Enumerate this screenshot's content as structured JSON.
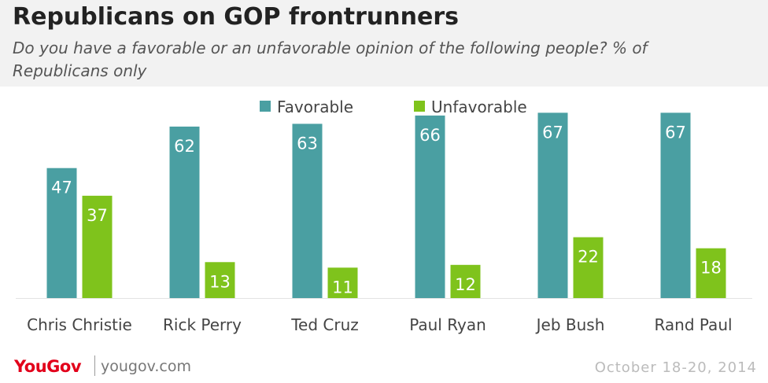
{
  "header": {
    "title": "Republicans on GOP frontrunners",
    "subtitle": "Do you have a favorable or an unfavorable opinion of the following people? % of Republicans only"
  },
  "footer": {
    "logo": "YouGov",
    "url": "yougov.com",
    "date": "October 18-20, 2014"
  },
  "colors": {
    "favorable": "#4a9fa2",
    "unfavorable": "#7fc31c",
    "header_bg": "#f2f2f2",
    "logo": "#e2001a"
  },
  "chart_data": {
    "type": "bar",
    "categories": [
      "Chris Christie",
      "Rick Perry",
      "Ted Cruz",
      "Paul Ryan",
      "Jeb Bush",
      "Rand Paul"
    ],
    "series": [
      {
        "name": "Favorable",
        "values": [
          47,
          62,
          63,
          66,
          67,
          67
        ]
      },
      {
        "name": "Unfavorable",
        "values": [
          37,
          13,
          11,
          12,
          22,
          18
        ]
      }
    ],
    "ylim": [
      0,
      70
    ],
    "legend": "top-center",
    "grid": false,
    "data_labels": true
  }
}
